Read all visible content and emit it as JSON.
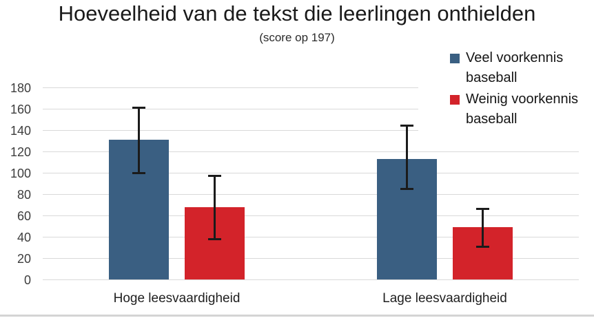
{
  "chart_data": {
    "type": "bar",
    "title": "Hoeveelheid van de tekst die leerlingen onthielden",
    "subtitle": "(score op 197)",
    "categories": [
      "Hoge leesvaardigheid",
      "Lage leesvaardigheid"
    ],
    "series": [
      {
        "name": "Veel voorkennis baseball",
        "color": "#3A5F82",
        "values": [
          131,
          113
        ],
        "error_low": [
          100,
          85
        ],
        "error_high": [
          162,
          145
        ]
      },
      {
        "name": "Weinig voorkennis baseball",
        "color": "#D3232A",
        "values": [
          68,
          49
        ],
        "error_low": [
          38,
          31
        ],
        "error_high": [
          98,
          67
        ]
      }
    ],
    "xlabel": "",
    "ylabel": "",
    "ylim": [
      0,
      180
    ],
    "yticks": [
      0,
      20,
      40,
      60,
      80,
      100,
      120,
      140,
      160,
      180
    ],
    "grid": true,
    "legend_position": "top-right",
    "gridline_color": "#d9d9d9",
    "errorbar_color": "#1b1b1b",
    "background_color": "#ffffff"
  }
}
